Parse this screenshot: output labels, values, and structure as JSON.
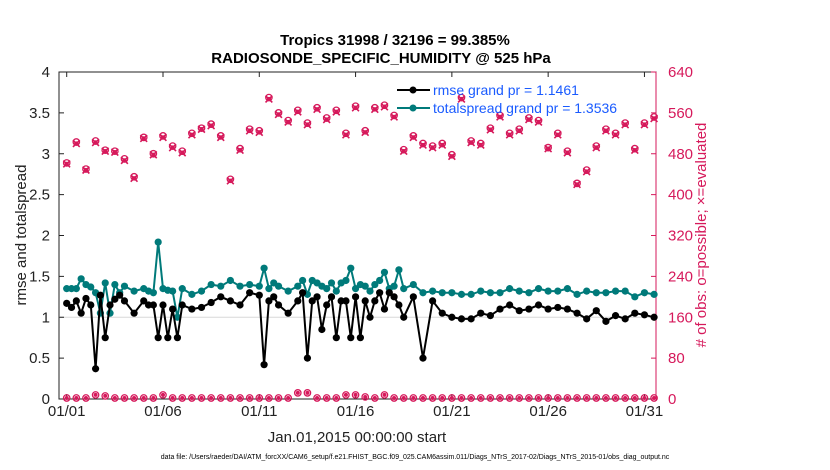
{
  "chart_data": {
    "type": "line",
    "title_line1": "Tropics 31998 / 32196 = 99.385%",
    "title_line2": "RADIOSONDE_SPECIFIC_HUMIDITY @ 525 hPa",
    "xlabel": "Jan.01,2015 00:00:00 start",
    "ylabel_left": "rmse and totalspread",
    "ylabel_right": "# of obs: o=possible; ×=evaluated",
    "footer": "data file: /Users/raeder/DAI/ATM_forcXX/CAM6_setup/f.e21.FHIST_BGC.f09_025.CAM6assim.011/Diags_NTrS_2017-02/Diags_NTrS_2015-01/obs_diag_output.nc",
    "xlim": [
      0.6,
      31.6
    ],
    "ylim_left": [
      0,
      4
    ],
    "ylim_right": [
      0,
      640
    ],
    "x_ticks": [
      1,
      6,
      11,
      16,
      21,
      26,
      31
    ],
    "x_tick_labels": [
      "01/01",
      "01/06",
      "01/11",
      "01/16",
      "01/21",
      "01/26",
      "01/31"
    ],
    "y_left_ticks": [
      0,
      0.5,
      1,
      1.5,
      2,
      2.5,
      3,
      3.5,
      4
    ],
    "y_left_tick_labels": [
      "0",
      "0.5",
      "1",
      "1.5",
      "2",
      "2.5",
      "3",
      "3.5",
      "4"
    ],
    "y_right_ticks": [
      0,
      80,
      160,
      240,
      320,
      400,
      480,
      560,
      640
    ],
    "y_right_tick_labels": [
      "0",
      "80",
      "160",
      "240",
      "320",
      "400",
      "480",
      "560",
      "640"
    ],
    "legend": [
      {
        "name": "rmse",
        "label": "rmse grand pr = 1.1461"
      },
      {
        "name": "totalspread",
        "label": "totalspread grand pr = 1.3536"
      }
    ],
    "colors": {
      "rmse": "#000000",
      "totalspread": "#007a7a",
      "obs": "#d6195b",
      "axis": "#222222"
    },
    "series": [
      {
        "name": "rmse",
        "x": [
          1.0,
          1.25,
          1.5,
          1.75,
          2.0,
          2.25,
          2.5,
          2.75,
          3.0,
          3.25,
          3.5,
          3.75,
          4.0,
          4.5,
          5.0,
          5.25,
          5.5,
          5.75,
          6.0,
          6.25,
          6.5,
          6.75,
          7.0,
          7.5,
          8.0,
          8.5,
          9.0,
          9.5,
          10.0,
          10.5,
          11.0,
          11.25,
          11.5,
          11.75,
          12.0,
          12.5,
          13.0,
          13.25,
          13.5,
          13.75,
          14.0,
          14.25,
          14.5,
          14.75,
          15.0,
          15.25,
          15.5,
          15.75,
          16.0,
          16.25,
          16.5,
          16.75,
          17.0,
          17.25,
          17.5,
          17.75,
          18.0,
          18.25,
          18.5,
          19.0,
          19.5,
          20.0,
          20.5,
          21.0,
          21.5,
          22.0,
          22.5,
          23.0,
          23.5,
          24.0,
          24.5,
          25.0,
          25.5,
          26.0,
          26.5,
          27.0,
          27.5,
          28.0,
          28.5,
          29.0,
          29.5,
          30.0,
          30.5,
          31.0,
          31.5
        ],
        "values": [
          1.17,
          1.12,
          1.2,
          1.05,
          1.23,
          1.15,
          0.37,
          1.27,
          0.75,
          1.15,
          1.22,
          1.27,
          1.2,
          1.05,
          1.2,
          1.15,
          1.15,
          0.75,
          1.15,
          0.75,
          1.1,
          0.75,
          1.15,
          1.1,
          1.12,
          1.18,
          1.25,
          1.2,
          1.15,
          1.3,
          1.27,
          0.42,
          1.2,
          1.25,
          1.15,
          1.05,
          1.2,
          1.3,
          0.5,
          1.2,
          1.25,
          0.85,
          1.15,
          1.25,
          0.75,
          1.2,
          1.2,
          0.75,
          1.25,
          0.75,
          1.2,
          1.0,
          1.2,
          1.3,
          1.1,
          1.3,
          1.25,
          1.15,
          1.0,
          1.25,
          0.5,
          1.2,
          1.05,
          1.0,
          0.98,
          0.98,
          1.05,
          1.02,
          1.1,
          1.15,
          1.08,
          1.1,
          1.15,
          1.1,
          1.12,
          1.1,
          1.05,
          0.98,
          1.08,
          0.95,
          1.02,
          0.98,
          1.05,
          1.03,
          1.0
        ]
      },
      {
        "name": "totalspread",
        "x": [
          1.0,
          1.25,
          1.5,
          1.75,
          2.0,
          2.25,
          2.5,
          2.75,
          3.0,
          3.25,
          3.5,
          3.75,
          4.0,
          4.5,
          5.0,
          5.25,
          5.5,
          5.75,
          6.0,
          6.25,
          6.5,
          6.75,
          7.0,
          7.5,
          8.0,
          8.5,
          9.0,
          9.5,
          10.0,
          10.5,
          11.0,
          11.25,
          11.5,
          11.75,
          12.0,
          12.5,
          13.0,
          13.25,
          13.5,
          13.75,
          14.0,
          14.25,
          14.5,
          14.75,
          15.0,
          15.25,
          15.5,
          15.75,
          16.0,
          16.25,
          16.5,
          16.75,
          17.0,
          17.25,
          17.5,
          17.75,
          18.0,
          18.25,
          18.5,
          19.0,
          19.5,
          20.0,
          20.5,
          21.0,
          21.5,
          22.0,
          22.5,
          23.0,
          23.5,
          24.0,
          24.5,
          25.0,
          25.5,
          26.0,
          26.5,
          27.0,
          27.5,
          28.0,
          28.5,
          29.0,
          29.5,
          30.0,
          30.5,
          31.0,
          31.5
        ],
        "values": [
          1.35,
          1.35,
          1.35,
          1.47,
          1.4,
          1.37,
          1.3,
          1.05,
          1.42,
          1.05,
          1.4,
          1.3,
          1.38,
          1.32,
          1.35,
          1.32,
          1.3,
          1.92,
          1.35,
          1.33,
          1.32,
          1.0,
          1.35,
          1.28,
          1.32,
          1.4,
          1.38,
          1.45,
          1.38,
          1.4,
          1.38,
          1.6,
          1.35,
          1.42,
          1.38,
          1.32,
          1.38,
          1.45,
          1.28,
          1.45,
          1.42,
          1.38,
          1.35,
          1.42,
          1.32,
          1.42,
          1.45,
          1.6,
          1.35,
          1.4,
          1.38,
          1.32,
          1.4,
          1.45,
          1.55,
          1.35,
          1.38,
          1.58,
          1.35,
          1.4,
          1.3,
          1.32,
          1.3,
          1.3,
          1.28,
          1.28,
          1.32,
          1.3,
          1.3,
          1.35,
          1.32,
          1.3,
          1.35,
          1.32,
          1.32,
          1.35,
          1.28,
          1.32,
          1.3,
          1.3,
          1.32,
          1.32,
          1.25,
          1.3,
          1.28
        ]
      },
      {
        "name": "obs_possible",
        "x": [
          1.0,
          1.5,
          2.0,
          2.5,
          3.0,
          3.5,
          4.0,
          4.5,
          5.0,
          5.5,
          6.0,
          6.5,
          7.0,
          7.5,
          8.0,
          8.5,
          9.0,
          9.5,
          10.0,
          10.5,
          11.0,
          11.5,
          12.0,
          12.5,
          13.0,
          13.5,
          14.0,
          14.5,
          15.0,
          15.5,
          16.0,
          16.5,
          17.0,
          17.5,
          18.0,
          18.5,
          19.0,
          19.5,
          20.0,
          20.5,
          21.0,
          21.5,
          22.0,
          22.5,
          23.0,
          23.5,
          24.0,
          24.5,
          25.0,
          25.5,
          26.0,
          26.5,
          27.0,
          27.5,
          28.0,
          28.5,
          29.0,
          29.5,
          30.0,
          30.5,
          31.0,
          31.5
        ],
        "values": [
          462,
          503,
          450,
          505,
          487,
          485,
          470,
          435,
          512,
          480,
          515,
          495,
          485,
          520,
          530,
          538,
          515,
          430,
          490,
          528,
          525,
          590,
          560,
          545,
          565,
          540,
          570,
          550,
          565,
          520,
          573,
          525,
          570,
          575,
          555,
          488,
          515,
          500,
          495,
          500,
          478,
          590,
          505,
          500,
          530,
          555,
          520,
          528,
          550,
          545,
          492,
          520,
          485,
          422,
          448,
          495,
          528,
          520,
          540,
          490,
          540,
          552
        ]
      },
      {
        "name": "obs_evaluated",
        "x": [
          1.0,
          1.5,
          2.0,
          2.5,
          3.0,
          3.5,
          4.0,
          4.5,
          5.0,
          5.5,
          6.0,
          6.5,
          7.0,
          7.5,
          8.0,
          8.5,
          9.0,
          9.5,
          10.0,
          10.5,
          11.0,
          11.5,
          12.0,
          12.5,
          13.0,
          13.5,
          14.0,
          14.5,
          15.0,
          15.5,
          16.0,
          16.5,
          17.0,
          17.5,
          18.0,
          18.5,
          19.0,
          19.5,
          20.0,
          20.5,
          21.0,
          21.5,
          22.0,
          22.5,
          23.0,
          23.5,
          24.0,
          24.5,
          25.0,
          25.5,
          26.0,
          26.5,
          27.0,
          27.5,
          28.0,
          28.5,
          29.0,
          29.5,
          30.0,
          30.5,
          31.0,
          31.5
        ],
        "values": [
          460,
          500,
          448,
          502,
          485,
          483,
          467,
          432,
          510,
          478,
          512,
          492,
          482,
          517,
          528,
          535,
          512,
          427,
          487,
          525,
          522,
          587,
          557,
          542,
          562,
          537,
          567,
          547,
          562,
          517,
          570,
          522,
          567,
          572,
          552,
          485,
          512,
          497,
          492,
          497,
          475,
          587,
          502,
          497,
          527,
          552,
          517,
          525,
          547,
          542,
          490,
          517,
          482,
          420,
          445,
          492,
          525,
          517,
          537,
          487,
          537,
          549
        ]
      },
      {
        "name": "obs_bottom",
        "x": [
          1.0,
          1.5,
          2.0,
          2.5,
          3.0,
          3.5,
          4.0,
          4.5,
          5.0,
          5.5,
          6.0,
          6.5,
          7.0,
          7.5,
          8.0,
          8.5,
          9.0,
          9.5,
          10.0,
          10.5,
          11.0,
          11.5,
          12.0,
          12.5,
          13.0,
          13.5,
          14.0,
          14.5,
          15.0,
          15.5,
          16.0,
          16.5,
          17.0,
          17.5,
          18.0,
          18.5,
          19.0,
          19.5,
          20.0,
          20.5,
          21.0,
          21.5,
          22.0,
          22.5,
          23.0,
          23.5,
          24.0,
          24.5,
          25.0,
          25.5,
          26.0,
          26.5,
          27.0,
          27.5,
          28.0,
          28.5,
          29.0,
          29.5,
          30.0,
          30.5,
          31.0,
          31.5
        ],
        "values": [
          2,
          2,
          2,
          8,
          6,
          2,
          2,
          2,
          2,
          2,
          8,
          2,
          2,
          2,
          2,
          2,
          2,
          2,
          2,
          2,
          2,
          2,
          2,
          2,
          12,
          12,
          2,
          2,
          2,
          8,
          8,
          4,
          2,
          8,
          2,
          2,
          2,
          2,
          2,
          2,
          2,
          2,
          2,
          2,
          2,
          2,
          2,
          2,
          2,
          2,
          2,
          2,
          2,
          2,
          2,
          2,
          2,
          2,
          2,
          2,
          2,
          2
        ]
      }
    ]
  }
}
